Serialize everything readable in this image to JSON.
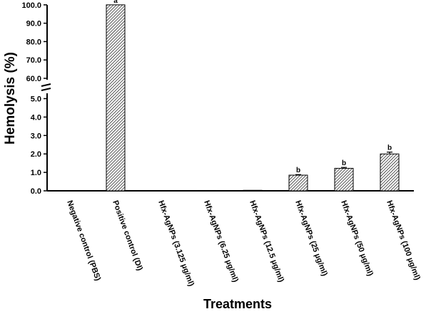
{
  "chart_data": {
    "type": "bar",
    "ylabel": "Hemolysis (%)",
    "xlabel": "Treatments",
    "y_axis_break": true,
    "y_ticks_lower": [
      "0.0",
      "1.0",
      "2.0",
      "3.0",
      "4.0",
      "5.0"
    ],
    "y_ticks_upper": [
      "60.0",
      "70.0",
      "80.0",
      "90.0",
      "100.0"
    ],
    "categories": [
      "Negative control (PBS)",
      "Positive control (DI)",
      "Hfx-AgNPs (3.125 µg/ml)",
      "Hfx-AgNPs (6.25 µg/ml)",
      "Hfx-AgNPs (12.5 µg/ml)",
      "Hfx-AgNPs (25 µg/ml)",
      "Hfx-AgNPs (50 µg/ml)",
      "Hfx-AgNPs (100 µg/ml)"
    ],
    "values": [
      0,
      100,
      0,
      0.02,
      0.03,
      0.85,
      1.22,
      2.0
    ],
    "errors": [
      0,
      0,
      0,
      0,
      0,
      0.03,
      0.05,
      0.1
    ],
    "annotations": [
      "",
      "a",
      "",
      "",
      "",
      "b",
      "b",
      "b"
    ],
    "bar_fill": "hatched",
    "colors": {
      "bar_stroke": "#000000",
      "hatch": "#000000",
      "axis": "#000000"
    }
  }
}
